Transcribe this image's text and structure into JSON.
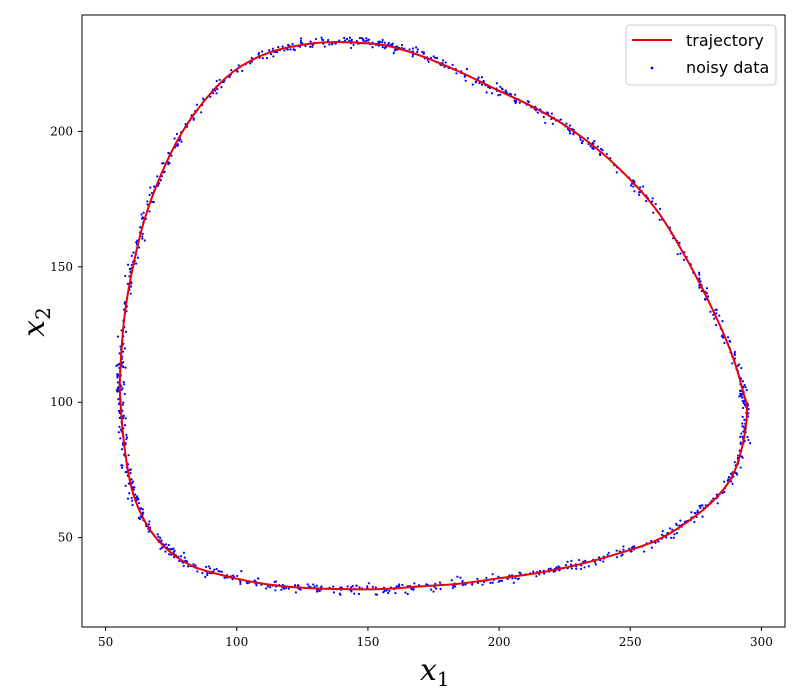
{
  "chart_data": {
    "type": "scatter",
    "title": "",
    "xlabel": "x",
    "xlabel_sub": "1",
    "ylabel": "x",
    "ylabel_sub": "2",
    "xlim": [
      41,
      309
    ],
    "ylim": [
      17,
      243
    ],
    "xticks": [
      50,
      100,
      150,
      200,
      250,
      300
    ],
    "yticks": [
      50,
      100,
      150,
      200
    ],
    "grid": false,
    "legend_position": "top-right",
    "series": [
      {
        "name": "trajectory",
        "kind": "line",
        "color": "#e8000b",
        "x": [
          55.5,
          57,
          60,
          65,
          72,
          80,
          90,
          100,
          112,
          125,
          137,
          150,
          158,
          170,
          185,
          200,
          215,
          230,
          245,
          260,
          272,
          282,
          289,
          293,
          294.5,
          293,
          289,
          282,
          272,
          260,
          245,
          230,
          215,
          200,
          185,
          170,
          155,
          140,
          125,
          110,
          95,
          82,
          72,
          65,
          60,
          57,
          55.5
        ],
        "y": [
          110,
          130,
          148,
          168,
          186,
          201,
          214,
          223,
          229,
          232,
          233,
          232.5,
          231.5,
          228,
          222,
          215,
          208,
          199,
          187,
          171,
          152,
          133,
          117,
          104,
          97,
          85,
          73,
          64,
          56,
          49,
          44,
          40,
          37,
          35,
          33,
          32,
          31,
          31,
          31.5,
          33,
          36,
          40,
          47,
          56,
          68,
          85,
          103
        ]
      },
      {
        "name": "noisy data",
        "kind": "scatter",
        "color": "#0000ff",
        "n_points": 1200,
        "noise_std": 0.9
      }
    ]
  },
  "colors": {
    "trajectory": "#e8000b",
    "noisy_data": "#0000ff",
    "legend_border": "#cccccc"
  }
}
